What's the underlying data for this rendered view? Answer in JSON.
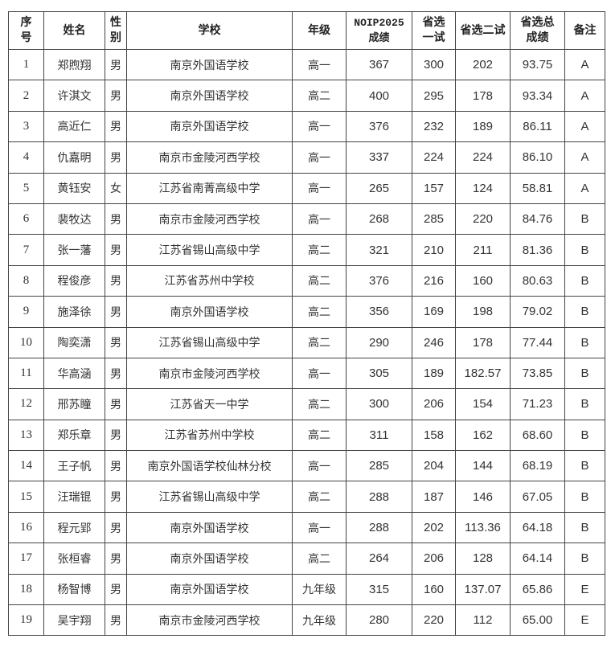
{
  "table": {
    "headers": [
      "序号",
      "姓名",
      "性别",
      "学校",
      "年级",
      "NOIP2025成绩",
      "省选一试",
      "省选二试",
      "省选总成绩",
      "备注"
    ],
    "rows": [
      [
        "1",
        "郑煦翔",
        "男",
        "南京外国语学校",
        "高一",
        "367",
        "300",
        "202",
        "93.75",
        "A"
      ],
      [
        "2",
        "许淇文",
        "男",
        "南京外国语学校",
        "高二",
        "400",
        "295",
        "178",
        "93.34",
        "A"
      ],
      [
        "3",
        "高近仁",
        "男",
        "南京外国语学校",
        "高一",
        "376",
        "232",
        "189",
        "86.11",
        "A"
      ],
      [
        "4",
        "仇嘉明",
        "男",
        "南京市金陵河西学校",
        "高一",
        "337",
        "224",
        "224",
        "86.10",
        "A"
      ],
      [
        "5",
        "黄钰安",
        "女",
        "江苏省南菁高级中学",
        "高一",
        "265",
        "157",
        "124",
        "58.81",
        "A"
      ],
      [
        "6",
        "裴牧达",
        "男",
        "南京市金陵河西学校",
        "高一",
        "268",
        "285",
        "220",
        "84.76",
        "B"
      ],
      [
        "7",
        "张一藩",
        "男",
        "江苏省锡山高级中学",
        "高二",
        "321",
        "210",
        "211",
        "81.36",
        "B"
      ],
      [
        "8",
        "程俊彦",
        "男",
        "江苏省苏州中学校",
        "高二",
        "376",
        "216",
        "160",
        "80.63",
        "B"
      ],
      [
        "9",
        "施泽徐",
        "男",
        "南京外国语学校",
        "高二",
        "356",
        "169",
        "198",
        "79.02",
        "B"
      ],
      [
        "10",
        "陶奕潇",
        "男",
        "江苏省锡山高级中学",
        "高二",
        "290",
        "246",
        "178",
        "77.44",
        "B"
      ],
      [
        "11",
        "华高涵",
        "男",
        "南京市金陵河西学校",
        "高一",
        "305",
        "189",
        "182.57",
        "73.85",
        "B"
      ],
      [
        "12",
        "邢苏瞳",
        "男",
        "江苏省天一中学",
        "高二",
        "300",
        "206",
        "154",
        "71.23",
        "B"
      ],
      [
        "13",
        "郑乐章",
        "男",
        "江苏省苏州中学校",
        "高二",
        "311",
        "158",
        "162",
        "68.60",
        "B"
      ],
      [
        "14",
        "王子帆",
        "男",
        "南京外国语学校仙林分校",
        "高一",
        "285",
        "204",
        "144",
        "68.19",
        "B"
      ],
      [
        "15",
        "汪瑞锟",
        "男",
        "江苏省锡山高级中学",
        "高二",
        "288",
        "187",
        "146",
        "67.05",
        "B"
      ],
      [
        "16",
        "程元郢",
        "男",
        "南京外国语学校",
        "高一",
        "288",
        "202",
        "113.36",
        "64.18",
        "B"
      ],
      [
        "17",
        "张桓睿",
        "男",
        "南京外国语学校",
        "高二",
        "264",
        "206",
        "128",
        "64.14",
        "B"
      ],
      [
        "18",
        "杨智博",
        "男",
        "南京外国语学校",
        "九年级",
        "315",
        "160",
        "137.07",
        "65.86",
        "E"
      ],
      [
        "19",
        "吴宇翔",
        "男",
        "南京市金陵河西学校",
        "九年级",
        "280",
        "220",
        "112",
        "65.00",
        "E"
      ]
    ]
  }
}
